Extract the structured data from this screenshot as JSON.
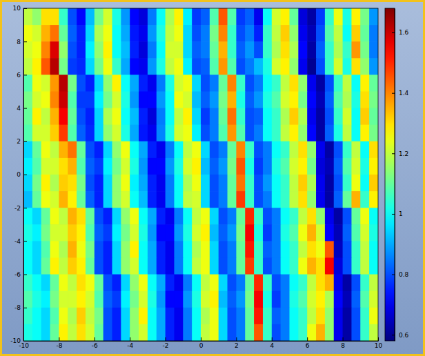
{
  "chart_data": {
    "type": "heatmap",
    "x": [
      -9.75,
      -9.25,
      -8.75,
      -8.25,
      -7.75,
      -7.25,
      -6.75,
      -6.25,
      -5.75,
      -5.25,
      -4.75,
      -4.25,
      -3.75,
      -3.25,
      -2.75,
      -2.25,
      -1.75,
      -1.25,
      -0.75,
      -0.25,
      0.25,
      0.75,
      1.25,
      1.75,
      2.25,
      2.75,
      3.25,
      3.75,
      4.25,
      4.75,
      5.25,
      5.75,
      6.25,
      6.75,
      7.25,
      7.75,
      8.25,
      8.75,
      9.25,
      9.75
    ],
    "y": [
      9.5,
      8.5,
      7.5,
      6.5,
      5.5,
      4.5,
      3.5,
      2.5,
      1.5,
      0.5,
      -0.5,
      -1.5,
      -2.5,
      -3.5,
      -4.5,
      -5.5,
      -6.5,
      -7.5,
      -8.5,
      -9.5
    ],
    "cells": [
      [
        1.2,
        1.15,
        1.3,
        1.3,
        1.05,
        0.8,
        0.72,
        0.92,
        1.12,
        1.22,
        1.02,
        0.88,
        0.72,
        0.68,
        0.85,
        1.0,
        1.18,
        1.28,
        0.98,
        0.78,
        0.82,
        1.08,
        1.45,
        1.08,
        0.78,
        0.82,
        0.7,
        1.0,
        1.22,
        1.28,
        1.1,
        0.68,
        0.62,
        0.78,
        1.05,
        1.25,
        1.02,
        1.28,
        1.12,
        0.88
      ],
      [
        1.25,
        1.22,
        1.35,
        1.42,
        1.1,
        0.82,
        0.75,
        0.95,
        1.18,
        1.25,
        1.0,
        0.9,
        0.74,
        0.7,
        0.88,
        1.02,
        1.2,
        1.25,
        0.95,
        0.8,
        0.85,
        1.12,
        1.4,
        1.05,
        0.8,
        0.85,
        0.75,
        1.05,
        1.2,
        1.32,
        1.15,
        0.7,
        0.64,
        0.8,
        1.08,
        1.2,
        1.0,
        1.32,
        1.1,
        0.85
      ],
      [
        1.22,
        1.25,
        1.4,
        1.58,
        1.15,
        0.8,
        0.75,
        0.98,
        1.15,
        1.28,
        1.0,
        0.92,
        0.75,
        0.68,
        0.85,
        1.0,
        1.22,
        1.22,
        0.95,
        0.82,
        0.85,
        1.1,
        1.35,
        1.05,
        0.82,
        0.88,
        0.8,
        1.05,
        1.18,
        1.3,
        1.18,
        0.72,
        0.62,
        0.82,
        1.05,
        1.18,
        1.05,
        1.38,
        1.12,
        0.85
      ],
      [
        1.2,
        1.28,
        1.45,
        1.62,
        1.12,
        0.78,
        0.76,
        0.95,
        1.12,
        1.25,
        1.05,
        0.9,
        0.72,
        0.7,
        0.88,
        1.02,
        1.2,
        1.25,
        0.98,
        0.8,
        0.82,
        1.08,
        1.38,
        1.08,
        0.8,
        0.85,
        0.92,
        1.02,
        1.22,
        1.28,
        1.15,
        0.7,
        0.6,
        0.8,
        1.05,
        1.22,
        1.02,
        1.3,
        1.15,
        0.88
      ],
      [
        1.08,
        1.25,
        1.22,
        1.38,
        1.62,
        1.12,
        0.8,
        0.75,
        0.95,
        1.15,
        1.28,
        1.0,
        0.9,
        0.75,
        0.7,
        0.85,
        1.02,
        1.22,
        1.25,
        0.95,
        0.8,
        0.85,
        1.1,
        1.4,
        1.05,
        0.8,
        0.85,
        1.0,
        1.05,
        1.2,
        1.3,
        1.15,
        0.7,
        0.62,
        0.8,
        1.05,
        1.2,
        1.0,
        1.28,
        1.1
      ],
      [
        1.12,
        1.22,
        1.25,
        1.4,
        1.6,
        1.08,
        0.78,
        0.78,
        0.98,
        1.12,
        1.22,
        1.02,
        0.88,
        0.72,
        0.72,
        0.88,
        1.0,
        1.25,
        1.22,
        0.92,
        0.82,
        0.88,
        1.12,
        1.35,
        1.02,
        0.82,
        0.88,
        1.02,
        1.08,
        1.22,
        1.28,
        1.12,
        0.72,
        0.64,
        0.82,
        1.08,
        1.18,
        1.02,
        1.3,
        1.12
      ],
      [
        1.1,
        1.28,
        1.2,
        1.35,
        1.55,
        1.1,
        0.8,
        0.75,
        0.95,
        1.18,
        1.25,
        1.0,
        0.92,
        0.75,
        0.68,
        0.85,
        1.0,
        1.2,
        1.28,
        0.95,
        0.78,
        0.85,
        1.1,
        1.42,
        1.05,
        0.8,
        0.82,
        1.0,
        1.05,
        1.18,
        1.32,
        1.18,
        0.7,
        0.62,
        0.8,
        1.05,
        1.22,
        1.0,
        1.32,
        1.1
      ],
      [
        1.08,
        1.22,
        1.22,
        1.32,
        1.48,
        1.08,
        0.82,
        0.76,
        0.95,
        1.15,
        1.22,
        1.02,
        0.9,
        0.74,
        0.7,
        0.86,
        1.02,
        1.22,
        1.25,
        0.98,
        0.8,
        0.85,
        1.08,
        1.38,
        1.08,
        0.8,
        0.85,
        1.0,
        1.05,
        1.2,
        1.28,
        1.15,
        0.72,
        0.62,
        0.82,
        1.02,
        1.2,
        1.0,
        1.28,
        1.12
      ],
      [
        0.95,
        1.1,
        1.25,
        1.2,
        1.35,
        1.42,
        1.1,
        0.8,
        0.75,
        0.95,
        1.15,
        1.25,
        1.0,
        0.9,
        0.75,
        0.7,
        0.85,
        1.0,
        1.2,
        1.25,
        0.95,
        0.8,
        0.85,
        1.1,
        1.4,
        1.05,
        0.8,
        0.85,
        1.0,
        1.05,
        1.2,
        1.3,
        1.15,
        0.7,
        0.62,
        0.8,
        1.05,
        1.2,
        1.0,
        1.3
      ],
      [
        0.98,
        1.08,
        1.22,
        1.22,
        1.3,
        1.35,
        1.08,
        0.82,
        0.78,
        0.98,
        1.12,
        1.22,
        1.02,
        0.88,
        0.72,
        0.72,
        0.88,
        1.02,
        1.22,
        1.28,
        0.92,
        0.82,
        0.88,
        1.12,
        1.45,
        1.02,
        0.78,
        0.85,
        1.02,
        1.08,
        1.22,
        1.28,
        1.12,
        0.68,
        0.64,
        0.82,
        1.08,
        1.22,
        1.02,
        1.28
      ],
      [
        0.95,
        1.12,
        1.28,
        1.18,
        1.32,
        1.3,
        1.12,
        0.8,
        0.75,
        0.95,
        1.15,
        1.25,
        0.98,
        0.9,
        0.75,
        0.7,
        0.85,
        1.0,
        1.18,
        1.25,
        0.95,
        0.8,
        0.85,
        1.1,
        1.42,
        1.05,
        0.8,
        0.88,
        1.0,
        1.05,
        1.2,
        1.32,
        1.18,
        0.7,
        0.62,
        0.8,
        1.05,
        1.25,
        1.0,
        1.32
      ],
      [
        0.92,
        1.1,
        1.25,
        1.22,
        1.35,
        1.28,
        1.1,
        0.82,
        0.75,
        0.95,
        1.15,
        1.22,
        1.0,
        0.92,
        0.75,
        0.7,
        0.85,
        1.0,
        1.2,
        1.22,
        0.95,
        0.8,
        0.85,
        1.1,
        1.48,
        1.05,
        0.8,
        0.85,
        1.0,
        1.05,
        1.2,
        1.3,
        1.15,
        0.7,
        0.62,
        0.82,
        1.1,
        1.35,
        1.05,
        1.28
      ],
      [
        1.0,
        0.95,
        1.1,
        1.25,
        1.2,
        1.35,
        1.3,
        1.1,
        0.8,
        0.75,
        0.95,
        1.15,
        1.25,
        1.0,
        0.9,
        0.75,
        0.7,
        0.85,
        1.0,
        1.2,
        1.25,
        0.95,
        0.8,
        0.85,
        1.1,
        1.5,
        1.05,
        0.8,
        0.85,
        1.0,
        1.05,
        1.2,
        1.3,
        1.15,
        0.7,
        0.62,
        0.8,
        1.1,
        1.25,
        1.0
      ],
      [
        1.02,
        0.98,
        1.12,
        1.22,
        1.22,
        1.32,
        1.28,
        1.08,
        0.82,
        0.78,
        0.98,
        1.12,
        1.22,
        1.02,
        0.88,
        0.72,
        0.72,
        0.88,
        1.02,
        1.22,
        1.28,
        0.92,
        0.82,
        0.88,
        1.12,
        1.55,
        1.02,
        0.78,
        0.85,
        1.02,
        1.08,
        1.25,
        1.35,
        1.22,
        0.72,
        0.64,
        0.82,
        1.08,
        1.22,
        1.02
      ],
      [
        1.0,
        0.95,
        1.08,
        1.25,
        1.18,
        1.35,
        1.25,
        1.12,
        0.8,
        0.75,
        0.95,
        1.15,
        1.28,
        1.0,
        0.9,
        0.75,
        0.7,
        0.85,
        1.0,
        1.18,
        1.25,
        0.95,
        0.8,
        0.85,
        1.1,
        1.52,
        1.05,
        0.82,
        0.85,
        1.0,
        1.05,
        1.2,
        1.3,
        1.25,
        1.45,
        0.65,
        0.8,
        1.05,
        1.2,
        1.0
      ],
      [
        1.0,
        0.95,
        1.1,
        1.28,
        1.2,
        1.32,
        1.28,
        1.1,
        0.8,
        0.75,
        0.95,
        1.15,
        1.22,
        1.0,
        0.9,
        0.75,
        0.7,
        0.85,
        1.0,
        1.2,
        1.25,
        0.95,
        0.8,
        0.85,
        1.1,
        1.48,
        1.05,
        0.8,
        0.85,
        1.0,
        1.05,
        1.25,
        1.35,
        1.3,
        1.55,
        0.68,
        0.8,
        1.05,
        1.2,
        1.0
      ],
      [
        1.05,
        1.0,
        0.95,
        1.1,
        1.25,
        1.2,
        1.3,
        1.25,
        1.1,
        0.8,
        0.75,
        0.95,
        1.15,
        1.25,
        1.0,
        0.9,
        0.75,
        0.7,
        0.85,
        1.0,
        1.2,
        1.25,
        0.95,
        0.8,
        0.85,
        1.1,
        1.5,
        1.05,
        0.8,
        0.85,
        1.0,
        1.05,
        1.2,
        1.3,
        1.35,
        0.7,
        0.62,
        0.8,
        1.05,
        1.2
      ],
      [
        1.08,
        1.02,
        0.98,
        1.12,
        1.22,
        1.22,
        1.28,
        1.22,
        1.08,
        0.82,
        0.78,
        0.98,
        1.12,
        1.22,
        1.02,
        0.88,
        0.72,
        0.72,
        0.88,
        1.02,
        1.22,
        1.28,
        0.92,
        0.82,
        0.88,
        1.12,
        1.55,
        1.02,
        0.78,
        0.85,
        1.02,
        1.08,
        1.22,
        1.28,
        1.18,
        0.72,
        0.64,
        0.82,
        1.08,
        1.22
      ],
      [
        1.05,
        1.0,
        0.95,
        1.08,
        1.25,
        1.18,
        1.32,
        1.2,
        1.12,
        0.8,
        0.75,
        0.95,
        1.15,
        1.28,
        1.0,
        0.9,
        0.75,
        0.7,
        0.85,
        1.0,
        1.18,
        1.25,
        0.95,
        0.8,
        0.85,
        1.1,
        1.52,
        1.05,
        0.82,
        0.85,
        1.0,
        1.05,
        1.2,
        1.3,
        1.15,
        0.7,
        0.62,
        0.8,
        1.05,
        1.25
      ],
      [
        1.02,
        1.0,
        0.95,
        1.1,
        1.28,
        1.2,
        1.3,
        1.22,
        1.1,
        0.8,
        0.75,
        0.95,
        1.15,
        1.22,
        1.0,
        0.9,
        0.75,
        0.7,
        0.85,
        1.0,
        1.2,
        1.25,
        0.95,
        0.8,
        0.85,
        1.1,
        1.45,
        1.05,
        0.8,
        0.85,
        1.0,
        1.05,
        1.25,
        1.35,
        1.15,
        0.7,
        0.62,
        0.8,
        1.05,
        1.2
      ]
    ],
    "xlim": [
      -10,
      10
    ],
    "ylim": [
      -10,
      10
    ],
    "xticks": [
      -10,
      -8,
      -6,
      -4,
      -2,
      0,
      2,
      4,
      6,
      8,
      10
    ],
    "yticks": [
      -10,
      -8,
      -6,
      -4,
      -2,
      0,
      2,
      4,
      6,
      8,
      10
    ],
    "colorbar": {
      "range": [
        0.58,
        1.68
      ],
      "ticks": [
        0.6,
        0.8,
        1,
        1.2,
        1.4,
        1.6
      ]
    }
  }
}
